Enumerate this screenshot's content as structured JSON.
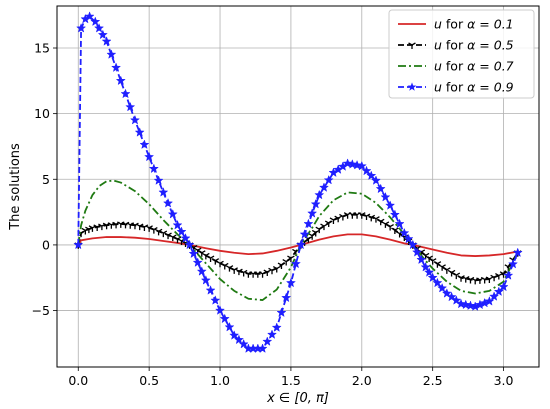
{
  "chart_data": {
    "type": "line",
    "xlabel": "x ∈ [0, π]",
    "ylabel": "The solutions",
    "xlim": [
      -0.15,
      3.25
    ],
    "ylim": [
      -9.3,
      18.2
    ],
    "grid": true,
    "legend_position": "top-right",
    "x_ticks": [
      0.0,
      0.5,
      1.0,
      1.5,
      2.0,
      2.5,
      3.0
    ],
    "x_tick_labels": [
      "0.0",
      "0.5",
      "1.0",
      "1.5",
      "2.0",
      "2.5",
      "3.0"
    ],
    "y_ticks": [
      -5,
      0,
      5,
      10,
      15
    ],
    "y_tick_labels": [
      "−5",
      "0",
      "5",
      "10",
      "15"
    ],
    "series": [
      {
        "name": "u for α = 0.1",
        "legend_var": "u",
        "legend_rest": " for ",
        "legend_param": "α = 0.1",
        "color": "#d62728",
        "style": "solid",
        "marker": "none",
        "points": [
          [
            0.0,
            0.0
          ],
          [
            0.02,
            0.35
          ],
          [
            0.1,
            0.5
          ],
          [
            0.2,
            0.6
          ],
          [
            0.3,
            0.6
          ],
          [
            0.4,
            0.55
          ],
          [
            0.5,
            0.45
          ],
          [
            0.6,
            0.3
          ],
          [
            0.7,
            0.15
          ],
          [
            0.785,
            0.0
          ],
          [
            0.9,
            -0.25
          ],
          [
            1.0,
            -0.45
          ],
          [
            1.1,
            -0.6
          ],
          [
            1.2,
            -0.7
          ],
          [
            1.3,
            -0.65
          ],
          [
            1.4,
            -0.45
          ],
          [
            1.5,
            -0.2
          ],
          [
            1.57,
            0.0
          ],
          [
            1.7,
            0.4
          ],
          [
            1.8,
            0.65
          ],
          [
            1.9,
            0.8
          ],
          [
            2.0,
            0.8
          ],
          [
            2.1,
            0.65
          ],
          [
            2.2,
            0.4
          ],
          [
            2.3,
            0.12
          ],
          [
            2.36,
            0.0
          ],
          [
            2.5,
            -0.35
          ],
          [
            2.6,
            -0.6
          ],
          [
            2.7,
            -0.8
          ],
          [
            2.8,
            -0.85
          ],
          [
            2.9,
            -0.8
          ],
          [
            3.0,
            -0.7
          ],
          [
            3.1,
            -0.5
          ]
        ]
      },
      {
        "name": "u for α = 0.5",
        "legend_var": "u",
        "legend_rest": " for ",
        "legend_param": "α = 0.5",
        "color": "#000000",
        "style": "dashed",
        "marker": "tri",
        "points": [
          [
            0.0,
            0.0
          ],
          [
            0.02,
            0.9
          ],
          [
            0.05,
            1.1
          ],
          [
            0.1,
            1.3
          ],
          [
            0.2,
            1.5
          ],
          [
            0.3,
            1.6
          ],
          [
            0.4,
            1.5
          ],
          [
            0.5,
            1.3
          ],
          [
            0.6,
            0.9
          ],
          [
            0.7,
            0.45
          ],
          [
            0.785,
            0.0
          ],
          [
            0.9,
            -0.8
          ],
          [
            1.0,
            -1.4
          ],
          [
            1.1,
            -1.9
          ],
          [
            1.2,
            -2.2
          ],
          [
            1.3,
            -2.2
          ],
          [
            1.4,
            -1.8
          ],
          [
            1.5,
            -1.0
          ],
          [
            1.57,
            0.0
          ],
          [
            1.65,
            0.7
          ],
          [
            1.7,
            1.2
          ],
          [
            1.8,
            1.9
          ],
          [
            1.9,
            2.3
          ],
          [
            2.0,
            2.3
          ],
          [
            2.1,
            2.0
          ],
          [
            2.2,
            1.4
          ],
          [
            2.3,
            0.6
          ],
          [
            2.36,
            0.0
          ],
          [
            2.45,
            -0.8
          ],
          [
            2.5,
            -1.2
          ],
          [
            2.6,
            -1.9
          ],
          [
            2.7,
            -2.5
          ],
          [
            2.8,
            -2.7
          ],
          [
            2.9,
            -2.6
          ],
          [
            3.0,
            -2.2
          ],
          [
            3.1,
            -0.6
          ]
        ]
      },
      {
        "name": "u for α = 0.7",
        "legend_var": "u",
        "legend_rest": " for ",
        "legend_param": "α = 0.7",
        "color": "#1f7a12",
        "style": "dashdot",
        "marker": "none",
        "points": [
          [
            0.0,
            0.0
          ],
          [
            0.02,
            1.5
          ],
          [
            0.05,
            2.6
          ],
          [
            0.1,
            3.8
          ],
          [
            0.15,
            4.5
          ],
          [
            0.2,
            4.85
          ],
          [
            0.25,
            4.9
          ],
          [
            0.3,
            4.75
          ],
          [
            0.4,
            4.1
          ],
          [
            0.5,
            3.1
          ],
          [
            0.6,
            1.9
          ],
          [
            0.7,
            0.8
          ],
          [
            0.785,
            0.0
          ],
          [
            0.9,
            -1.4
          ],
          [
            1.0,
            -2.6
          ],
          [
            1.1,
            -3.5
          ],
          [
            1.2,
            -4.1
          ],
          [
            1.3,
            -4.2
          ],
          [
            1.4,
            -3.4
          ],
          [
            1.5,
            -1.7
          ],
          [
            1.57,
            0.0
          ],
          [
            1.65,
            1.3
          ],
          [
            1.7,
            2.2
          ],
          [
            1.8,
            3.4
          ],
          [
            1.9,
            4.0
          ],
          [
            2.0,
            3.9
          ],
          [
            2.1,
            3.2
          ],
          [
            2.2,
            2.1
          ],
          [
            2.3,
            0.8
          ],
          [
            2.36,
            0.0
          ],
          [
            2.45,
            -1.2
          ],
          [
            2.5,
            -1.8
          ],
          [
            2.6,
            -2.8
          ],
          [
            2.7,
            -3.5
          ],
          [
            2.8,
            -3.7
          ],
          [
            2.9,
            -3.5
          ],
          [
            3.0,
            -2.8
          ],
          [
            3.1,
            -0.6
          ]
        ]
      },
      {
        "name": "u for α = 0.9",
        "legend_var": "u",
        "legend_rest": " for ",
        "legend_param": "α = 0.9",
        "color": "#1f1fff",
        "style": "dashed",
        "marker": "star",
        "points": [
          [
            0.0,
            0.0
          ],
          [
            0.02,
            16.5
          ],
          [
            0.05,
            17.2
          ],
          [
            0.08,
            17.4
          ],
          [
            0.12,
            17.0
          ],
          [
            0.2,
            15.5
          ],
          [
            0.3,
            12.5
          ],
          [
            0.4,
            9.5
          ],
          [
            0.5,
            6.7
          ],
          [
            0.6,
            4.0
          ],
          [
            0.7,
            1.5
          ],
          [
            0.785,
            0.0
          ],
          [
            0.9,
            -2.7
          ],
          [
            1.0,
            -5.0
          ],
          [
            1.1,
            -6.9
          ],
          [
            1.2,
            -7.9
          ],
          [
            1.3,
            -7.9
          ],
          [
            1.4,
            -6.3
          ],
          [
            1.5,
            -2.9
          ],
          [
            1.57,
            0.0
          ],
          [
            1.65,
            2.4
          ],
          [
            1.7,
            3.8
          ],
          [
            1.8,
            5.5
          ],
          [
            1.9,
            6.2
          ],
          [
            2.0,
            6.0
          ],
          [
            2.1,
            4.9
          ],
          [
            2.2,
            3.0
          ],
          [
            2.3,
            0.9
          ],
          [
            2.36,
            0.0
          ],
          [
            2.45,
            -1.7
          ],
          [
            2.5,
            -2.5
          ],
          [
            2.6,
            -3.7
          ],
          [
            2.7,
            -4.5
          ],
          [
            2.8,
            -4.7
          ],
          [
            2.9,
            -4.3
          ],
          [
            3.0,
            -3.2
          ],
          [
            3.1,
            -0.6
          ]
        ]
      }
    ]
  }
}
